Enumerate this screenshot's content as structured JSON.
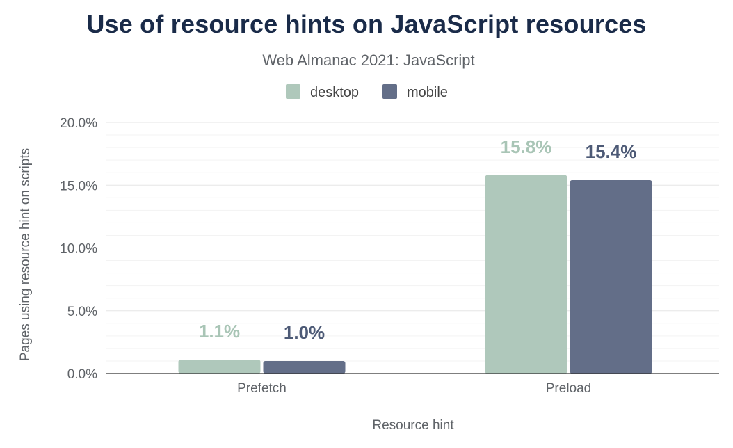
{
  "header": {
    "title": "Use of resource hints on JavaScript resources",
    "subtitle": "Web Almanac 2021: JavaScript"
  },
  "chart_data": {
    "type": "bar",
    "title": "Use of resource hints on JavaScript resources",
    "subtitle": "Web Almanac 2021: JavaScript",
    "xlabel": "Resource hint",
    "ylabel": "Pages using resource hint on scripts",
    "categories": [
      "Prefetch",
      "Preload"
    ],
    "series": [
      {
        "name": "desktop",
        "color": "#afc8bb",
        "label_color": "#a9c5b6",
        "values": [
          1.1,
          15.8
        ],
        "labels": [
          "1.1%",
          "15.8%"
        ]
      },
      {
        "name": "mobile",
        "color": "#636e88",
        "label_color": "#4d5a76",
        "values": [
          1.0,
          15.4
        ],
        "labels": [
          "1.0%",
          "15.4%"
        ]
      }
    ],
    "ylim": [
      0,
      20
    ],
    "yticks": [
      0,
      5,
      10,
      15,
      20
    ],
    "ytick_labels": [
      "0.0%",
      "5.0%",
      "10.0%",
      "15.0%",
      "20.0%"
    ],
    "minor_grid_step": 1,
    "grid": true,
    "legend": "top-center"
  }
}
